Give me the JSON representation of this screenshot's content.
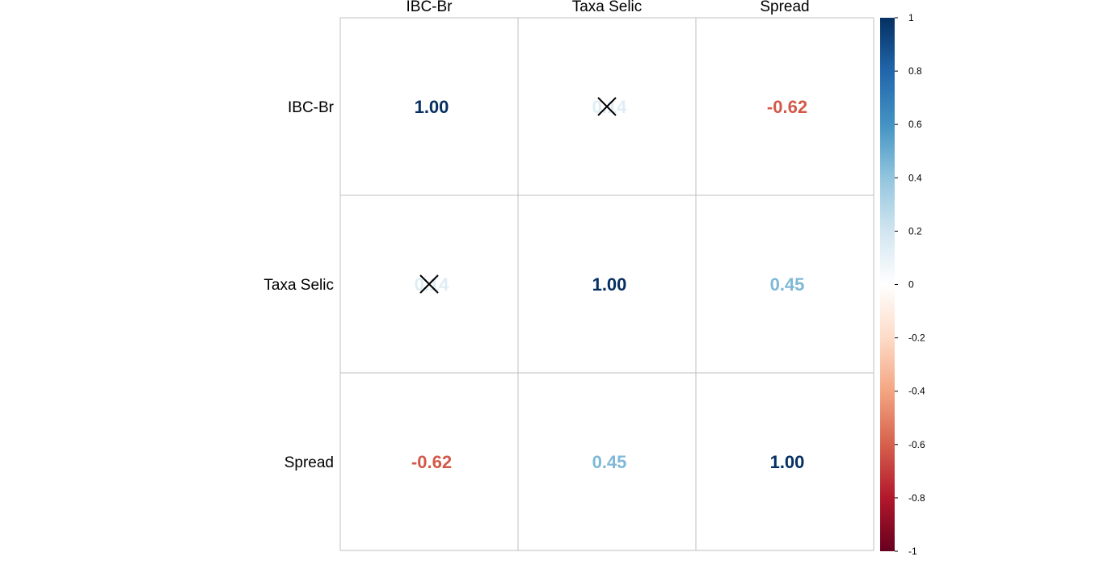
{
  "chart_data": {
    "type": "heatmap",
    "variables": [
      "IBC-Br",
      "Taxa Selic",
      "Spread"
    ],
    "values": [
      [
        1.0,
        0.14,
        -0.62
      ],
      [
        0.14,
        1.0,
        0.45
      ],
      [
        -0.62,
        0.45,
        1.0
      ]
    ],
    "labels": [
      [
        "1.00",
        "0.14",
        "-0.62"
      ],
      [
        "0.14",
        "1.00",
        "0.45"
      ],
      [
        "-0.62",
        "0.45",
        "1.00"
      ]
    ],
    "insignificant": [
      [
        false,
        true,
        false
      ],
      [
        true,
        false,
        false
      ],
      [
        false,
        false,
        false
      ]
    ],
    "colorbar": {
      "range": [
        -1,
        1
      ],
      "ticks": [
        "1",
        "0.8",
        "0.6",
        "0.4",
        "0.2",
        "0",
        "-0.2",
        "-0.4",
        "-0.6",
        "-0.8",
        "-1"
      ],
      "tick_values": [
        1,
        0.8,
        0.6,
        0.4,
        0.2,
        0,
        -0.2,
        -0.4,
        -0.6,
        -0.8,
        -1
      ],
      "colors": [
        "#67001F",
        "#B2182B",
        "#D6604D",
        "#F4A582",
        "#FDDBC7",
        "#FFFFFF",
        "#D1E5F0",
        "#92C5DE",
        "#4393C3",
        "#2166AC",
        "#053061"
      ]
    },
    "grid": true
  }
}
